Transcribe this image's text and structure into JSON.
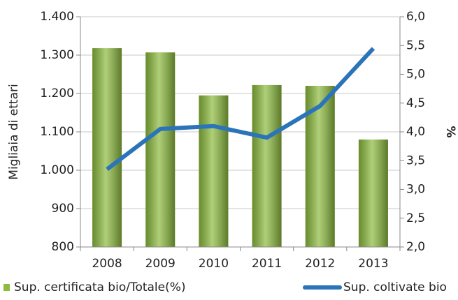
{
  "chart_data": {
    "type": "bar-line",
    "y_label": "Migliaia di ettari",
    "y2_label": "%",
    "categories": [
      "2008",
      "2009",
      "2010",
      "2011",
      "2012",
      "2013"
    ],
    "series": [
      {
        "name": "Sup. certificata bio/Totale(%)",
        "type": "bar",
        "color": "#8cbb3e",
        "values": [
          1318,
          1307,
          1195,
          1222,
          1220,
          1080
        ]
      },
      {
        "name": "Sup. coltivate bio",
        "type": "line",
        "axis": "y2",
        "color": "#2b74b9",
        "values": [
          3.35,
          4.05,
          4.1,
          3.9,
          4.45,
          5.45
        ]
      }
    ],
    "ylim": [
      800,
      1400
    ],
    "yticks": [
      800,
      900,
      {
        "value": 1000,
        "label": "1.000"
      },
      {
        "value": 1100,
        "label": "1.100"
      },
      {
        "value": 1200,
        "label": "1.200"
      },
      {
        "value": 1300,
        "label": "1.300"
      },
      {
        "value": 1400,
        "label": "1.400"
      }
    ],
    "y2lim": [
      2,
      6
    ],
    "y2ticks": [
      {
        "value": 2,
        "label": "2,0"
      },
      {
        "value": 2.5,
        "label": "2,5"
      },
      {
        "value": 3,
        "label": "3,0"
      },
      {
        "value": 3.5,
        "label": "3,5"
      },
      {
        "value": 4,
        "label": "4,0"
      },
      {
        "value": 4.5,
        "label": "4,5"
      },
      {
        "value": 5,
        "label": "5,0"
      },
      {
        "value": 5.5,
        "label": "5,5"
      },
      {
        "value": 6,
        "label": "6,0"
      }
    ],
    "grid": true,
    "legend": "bottom"
  }
}
